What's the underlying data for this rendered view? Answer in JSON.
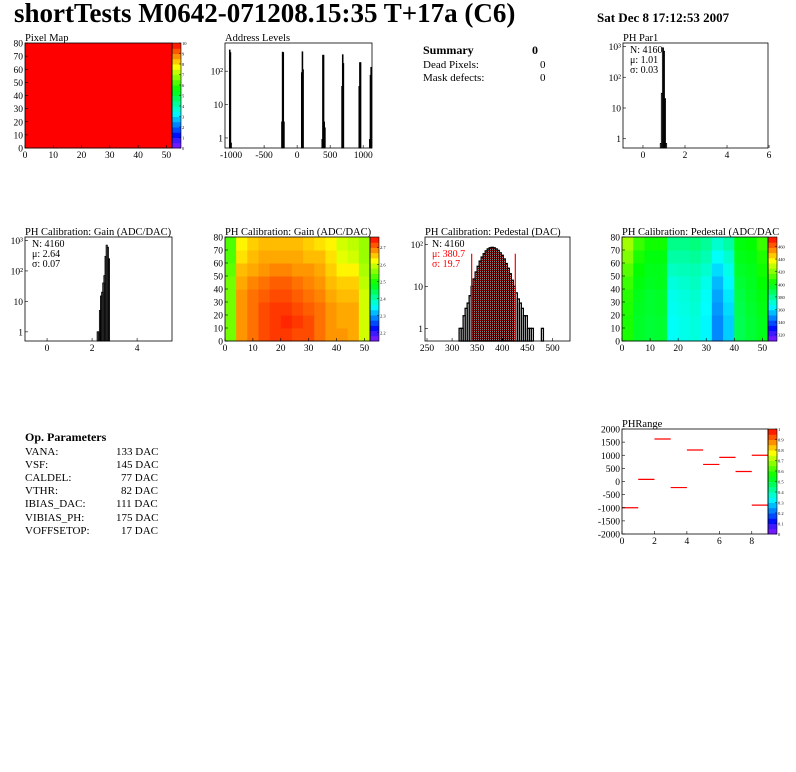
{
  "header": {
    "title": "shortTests M0642-071208.15:35 T+17a (C6)",
    "date": "Sat Dec  8 17:12:53 2007"
  },
  "summary": {
    "title": "Summary",
    "total": "0",
    "rows": [
      {
        "label": "Dead Pixels:",
        "value": "0"
      },
      {
        "label": "Mask defects:",
        "value": "0"
      }
    ]
  },
  "op_parameters": {
    "title": "Op. Parameters",
    "rows": [
      {
        "label": "VANA:",
        "value": "133 DAC"
      },
      {
        "label": "VSF:",
        "value": "145 DAC"
      },
      {
        "label": "CALDEL:",
        "value": "77 DAC"
      },
      {
        "label": "VTHR:",
        "value": "82 DAC"
      },
      {
        "label": "IBIAS_DAC:",
        "value": "111 DAC"
      },
      {
        "label": "VIBIAS_PH:",
        "value": "175 DAC"
      },
      {
        "label": "VOFFSETOP:",
        "value": "17 DAC"
      }
    ]
  },
  "colors": {
    "hist_line": "#000000",
    "fit": "#ff0000",
    "frame": "#000000"
  },
  "chart_data": [
    {
      "id": "pixelmap",
      "type": "heatmap",
      "title": "Pixel Map",
      "xlim": [
        0,
        52
      ],
      "ylim": [
        0,
        80
      ],
      "zlim": [
        0,
        10
      ],
      "xticks": [
        0,
        10,
        20,
        30,
        40,
        50
      ],
      "yticks": [
        0,
        10,
        20,
        30,
        40,
        50,
        60,
        70,
        80
      ],
      "zticks": [
        0,
        1,
        2,
        3,
        4,
        5,
        6,
        7,
        8,
        9,
        10
      ],
      "grid": [
        [
          10
        ]
      ],
      "note_uniform_value": 10
    },
    {
      "id": "address",
      "type": "bar",
      "title": "Address Levels",
      "logy": true,
      "xlim": [
        -1092,
        1133
      ],
      "ylim": [
        0.5,
        700
      ],
      "xticks": [
        -1000,
        -500,
        0,
        500,
        1000
      ],
      "yticks": [
        1,
        10,
        100
      ],
      "bin_width": 10,
      "bins": [
        [
          -1020,
          430
        ],
        [
          -1010,
          360
        ],
        [
          -1000,
          0.7
        ],
        [
          -230,
          3
        ],
        [
          -220,
          370
        ],
        [
          -210,
          360
        ],
        [
          -200,
          3
        ],
        [
          70,
          90
        ],
        [
          80,
          380
        ],
        [
          90,
          110
        ],
        [
          380,
          0.9
        ],
        [
          390,
          300
        ],
        [
          400,
          300
        ],
        [
          410,
          3
        ],
        [
          420,
          2
        ],
        [
          680,
          35
        ],
        [
          690,
          310
        ],
        [
          700,
          170
        ],
        [
          940,
          35
        ],
        [
          950,
          180
        ],
        [
          960,
          180
        ],
        [
          1100,
          0.9
        ],
        [
          1110,
          75
        ],
        [
          1120,
          130
        ]
      ]
    },
    {
      "id": "phpar1",
      "type": "bar",
      "title": "PH Par1",
      "logy": true,
      "xlim": [
        -0.95,
        5.95
      ],
      "ylim": [
        0.5,
        1300
      ],
      "xticks": [
        0,
        2,
        4,
        6
      ],
      "yticks": [
        1,
        10,
        100,
        1000
      ],
      "bin_width": 0.05,
      "bins": [
        [
          0.85,
          0.7
        ],
        [
          0.9,
          30
        ],
        [
          0.95,
          900
        ],
        [
          1.0,
          700
        ],
        [
          1.05,
          20
        ],
        [
          1.1,
          0.7
        ]
      ],
      "stats": [
        {
          "text": "N: 4160",
          "color": "#000000"
        },
        {
          "text": "μ: 1.01",
          "color": "#000000"
        },
        {
          "text": "σ: 0.03",
          "color": "#000000"
        }
      ]
    },
    {
      "id": "gainhist",
      "type": "bar",
      "title": "PH Calibration: Gain (ADC/DAC)",
      "logy": true,
      "xlim": [
        -0.98,
        5.55
      ],
      "ylim": [
        0.5,
        1300
      ],
      "xticks": [
        0,
        2,
        4
      ],
      "yticks": [
        1,
        10,
        100,
        1000
      ],
      "bin_width": 0.05,
      "bins": [
        [
          2.25,
          1
        ],
        [
          2.3,
          1
        ],
        [
          2.35,
          5
        ],
        [
          2.4,
          15
        ],
        [
          2.45,
          20
        ],
        [
          2.5,
          40
        ],
        [
          2.55,
          70
        ],
        [
          2.6,
          300
        ],
        [
          2.65,
          700
        ],
        [
          2.7,
          600
        ],
        [
          2.75,
          250
        ]
      ],
      "stats": [
        {
          "text": "N: 4160",
          "color": "#000000"
        },
        {
          "text": "μ: 2.64",
          "color": "#000000"
        },
        {
          "text": "σ: 0.07",
          "color": "#000000"
        }
      ]
    },
    {
      "id": "gainmap",
      "type": "heatmap",
      "title": "PH Calibration: Gain (ADC/DAC)",
      "xlim": [
        0,
        52
      ],
      "ylim": [
        0,
        80
      ],
      "zlim": [
        2.15,
        2.76
      ],
      "xticks": [
        0,
        10,
        20,
        30,
        40,
        50
      ],
      "yticks": [
        0,
        10,
        20,
        30,
        40,
        50,
        60,
        70,
        80
      ],
      "zticks": [
        2.2,
        2.3,
        2.4,
        2.5,
        2.6,
        2.7
      ],
      "grid": [
        [
          2.55,
          2.68,
          2.7,
          2.72,
          2.73,
          2.73,
          2.72,
          2.72,
          2.7,
          2.68,
          2.68,
          2.67,
          2.6
        ],
        [
          2.55,
          2.68,
          2.7,
          2.72,
          2.73,
          2.74,
          2.73,
          2.72,
          2.7,
          2.68,
          2.67,
          2.67,
          2.6
        ],
        [
          2.55,
          2.68,
          2.7,
          2.72,
          2.73,
          2.73,
          2.72,
          2.71,
          2.7,
          2.68,
          2.67,
          2.67,
          2.6
        ],
        [
          2.55,
          2.68,
          2.7,
          2.71,
          2.72,
          2.72,
          2.71,
          2.7,
          2.69,
          2.67,
          2.66,
          2.66,
          2.6
        ],
        [
          2.55,
          2.67,
          2.69,
          2.7,
          2.71,
          2.71,
          2.7,
          2.69,
          2.68,
          2.66,
          2.65,
          2.65,
          2.59
        ],
        [
          2.54,
          2.66,
          2.67,
          2.68,
          2.69,
          2.69,
          2.68,
          2.68,
          2.67,
          2.65,
          2.63,
          2.63,
          2.58
        ],
        [
          2.53,
          2.64,
          2.66,
          2.67,
          2.67,
          2.67,
          2.67,
          2.66,
          2.66,
          2.64,
          2.61,
          2.6,
          2.57
        ],
        [
          2.53,
          2.63,
          2.65,
          2.66,
          2.66,
          2.66,
          2.66,
          2.65,
          2.64,
          2.63,
          2.6,
          2.59,
          2.57
        ]
      ]
    },
    {
      "id": "pedhist",
      "type": "bar",
      "title": "PH Calibration: Pedestal (DAC)",
      "logy": true,
      "xlim": [
        246,
        535
      ],
      "ylim": [
        0.5,
        150
      ],
      "xticks": [
        250,
        300,
        350,
        400,
        450,
        500
      ],
      "yticks": [
        1,
        10,
        100
      ],
      "bin_width": 4,
      "fit_range": [
        339,
        426
      ],
      "bins": [
        [
          316,
          1
        ],
        [
          320,
          1
        ],
        [
          324,
          2
        ],
        [
          328,
          3
        ],
        [
          332,
          4
        ],
        [
          336,
          6
        ],
        [
          340,
          10
        ],
        [
          344,
          15
        ],
        [
          348,
          22
        ],
        [
          352,
          30
        ],
        [
          356,
          40
        ],
        [
          360,
          50
        ],
        [
          364,
          60
        ],
        [
          368,
          70
        ],
        [
          372,
          78
        ],
        [
          376,
          83
        ],
        [
          380,
          85
        ],
        [
          384,
          83
        ],
        [
          388,
          78
        ],
        [
          392,
          72
        ],
        [
          396,
          63
        ],
        [
          400,
          55
        ],
        [
          404,
          45
        ],
        [
          408,
          35
        ],
        [
          412,
          27
        ],
        [
          416,
          20
        ],
        [
          420,
          14
        ],
        [
          424,
          10
        ],
        [
          428,
          7
        ],
        [
          432,
          5
        ],
        [
          436,
          4
        ],
        [
          440,
          3
        ],
        [
          444,
          2
        ],
        [
          448,
          2
        ],
        [
          452,
          1
        ],
        [
          456,
          1
        ],
        [
          460,
          1
        ],
        [
          480,
          1
        ]
      ],
      "stats": [
        {
          "text": "N: 4160",
          "color": "#000000"
        },
        {
          "text": "μ: 380.7",
          "color": "#ff0000"
        },
        {
          "text": "σ: 19.7",
          "color": "#ff0000"
        }
      ]
    },
    {
      "id": "pedmap",
      "type": "heatmap",
      "title": "PH Calibration: Pedestal (ADC/DAC",
      "xlim": [
        0,
        52
      ],
      "ylim": [
        0,
        80
      ],
      "zlim": [
        310,
        475
      ],
      "xticks": [
        0,
        10,
        20,
        30,
        40,
        50
      ],
      "yticks": [
        0,
        10,
        20,
        30,
        40,
        50,
        60,
        70,
        80
      ],
      "zticks": [
        320,
        340,
        360,
        380,
        400,
        420,
        440,
        460
      ],
      "grid": [
        [
          405,
          396,
          394,
          395,
          366,
          368,
          370,
          364,
          348,
          358,
          390,
          394,
          398
        ],
        [
          405,
          396,
          394,
          395,
          366,
          368,
          370,
          364,
          348,
          358,
          390,
          394,
          398
        ],
        [
          406,
          397,
          395,
          396,
          367,
          369,
          371,
          365,
          350,
          360,
          391,
          395,
          399
        ],
        [
          407,
          398,
          395,
          396,
          368,
          370,
          372,
          366,
          352,
          362,
          392,
          396,
          400
        ],
        [
          410,
          400,
          397,
          398,
          370,
          372,
          374,
          368,
          355,
          364,
          394,
          397,
          402
        ],
        [
          414,
          402,
          398,
          398,
          374,
          375,
          376,
          372,
          360,
          368,
          396,
          398,
          404
        ],
        [
          420,
          405,
          400,
          400,
          378,
          378,
          380,
          376,
          366,
          372,
          398,
          400,
          406
        ],
        [
          425,
          410,
          404,
          404,
          382,
          382,
          384,
          380,
          372,
          378,
          400,
          402,
          410
        ]
      ]
    },
    {
      "id": "phrange",
      "type": "heatmap",
      "title": "PHRange",
      "xlim": [
        0,
        9
      ],
      "ylim": [
        -2000,
        2000
      ],
      "zlim": [
        0,
        1
      ],
      "xticks": [
        0,
        2,
        4,
        6,
        8
      ],
      "yticks": [
        -2000,
        -1500,
        -1000,
        -500,
        0,
        500,
        1000,
        1500,
        2000
      ],
      "zticks": [
        0,
        0.1,
        0.2,
        0.3,
        0.4,
        0.5,
        0.6,
        0.7,
        0.8,
        0.9,
        1
      ],
      "segments": [
        [
          0,
          -1000
        ],
        [
          1,
          80
        ],
        [
          2,
          1620
        ],
        [
          3,
          -230
        ],
        [
          4,
          1200
        ],
        [
          5,
          650
        ],
        [
          6,
          920
        ],
        [
          7,
          380
        ],
        [
          8,
          1000
        ],
        [
          8,
          -900
        ]
      ]
    }
  ]
}
